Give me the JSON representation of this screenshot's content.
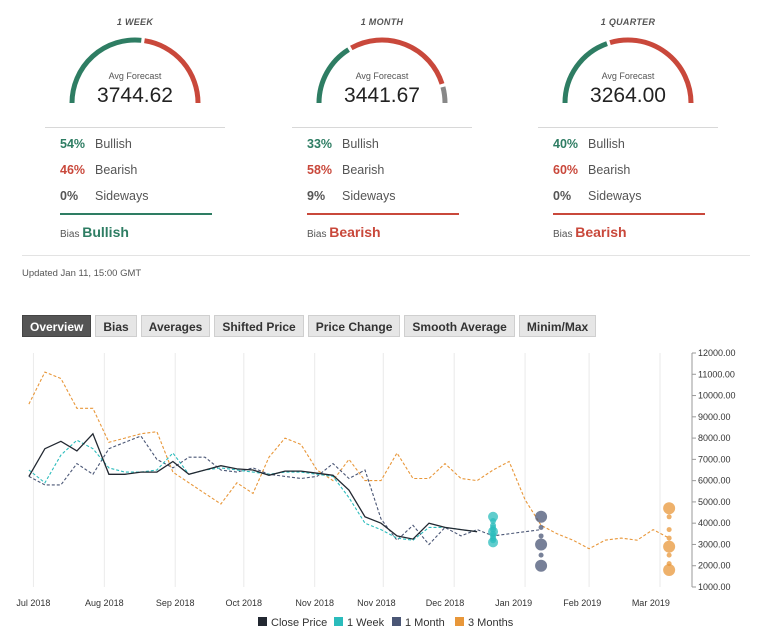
{
  "panels": [
    {
      "period": "1 WEEK",
      "avg_label": "Avg Forecast",
      "avg_value": "3744.62",
      "rows": [
        {
          "pct": "54%",
          "label": "Bullish",
          "color": "green"
        },
        {
          "pct": "46%",
          "label": "Bearish",
          "color": "red"
        },
        {
          "pct": "0%",
          "label": "Sideways",
          "color": "gray"
        }
      ],
      "bias_label": "Bias",
      "bias_value": "Bullish",
      "bias_color": "green",
      "gauge": {
        "green": 0.54,
        "red": 0.46,
        "gray": 0.0
      }
    },
    {
      "period": "1 MONTH",
      "avg_label": "Avg Forecast",
      "avg_value": "3441.67",
      "rows": [
        {
          "pct": "33%",
          "label": "Bullish",
          "color": "green"
        },
        {
          "pct": "58%",
          "label": "Bearish",
          "color": "red"
        },
        {
          "pct": "9%",
          "label": "Sideways",
          "color": "gray"
        }
      ],
      "bias_label": "Bias",
      "bias_value": "Bearish",
      "bias_color": "red",
      "gauge": {
        "green": 0.33,
        "red": 0.58,
        "gray": 0.09
      }
    },
    {
      "period": "1 QUARTER",
      "avg_label": "Avg Forecast",
      "avg_value": "3264.00",
      "rows": [
        {
          "pct": "40%",
          "label": "Bullish",
          "color": "green"
        },
        {
          "pct": "60%",
          "label": "Bearish",
          "color": "red"
        },
        {
          "pct": "0%",
          "label": "Sideways",
          "color": "gray"
        }
      ],
      "bias_label": "Bias",
      "bias_value": "Bearish",
      "bias_color": "red",
      "gauge": {
        "green": 0.4,
        "red": 0.6,
        "gray": 0.0
      }
    }
  ],
  "colors": {
    "green": "#2e7d63",
    "red": "#c9483b",
    "gray": "#888888",
    "close": "#222831",
    "week": "#2bbcbc",
    "month": "#4a5675",
    "quarter": "#e8973a"
  },
  "updated": "Updated Jan 11, 15:00 GMT",
  "tabs": [
    "Overview",
    "Bias",
    "Averages",
    "Shifted Price",
    "Price Change",
    "Smooth Average",
    "Minim/Max"
  ],
  "active_tab": "Overview",
  "chart_data": {
    "type": "line",
    "x_ticks": [
      "Jul 2018",
      "Aug 2018",
      "Sep 2018",
      "Oct 2018",
      "Nov 2018",
      "Nov 2018",
      "Dec 2018",
      "Jan 2019",
      "Feb 2019",
      "Mar 2019"
    ],
    "y_ticks": [
      "1000.00",
      "2000.00",
      "3000.00",
      "4000.00",
      "5000.00",
      "6000.00",
      "7000.00",
      "8000.00",
      "9000.00",
      "10000.00",
      "11000.00",
      "12000.00"
    ],
    "ylim": [
      1000,
      12000
    ],
    "legend": [
      "Close Price",
      "1 Week",
      "1 Month",
      "3 Months"
    ],
    "legend_position": "bottom",
    "series": [
      {
        "name": "Close Price",
        "style": "solid",
        "points": [
          [
            "2018-06-29",
            6200
          ],
          [
            "2018-07-06",
            7500
          ],
          [
            "2018-07-13",
            7850
          ],
          [
            "2018-07-20",
            7400
          ],
          [
            "2018-07-27",
            8200
          ],
          [
            "2018-08-03",
            6300
          ],
          [
            "2018-08-10",
            6300
          ],
          [
            "2018-08-17",
            6400
          ],
          [
            "2018-08-24",
            6400
          ],
          [
            "2018-08-31",
            6900
          ],
          [
            "2018-09-07",
            6300
          ],
          [
            "2018-09-14",
            6500
          ],
          [
            "2018-09-21",
            6700
          ],
          [
            "2018-09-28",
            6550
          ],
          [
            "2018-10-05",
            6500
          ],
          [
            "2018-10-12",
            6250
          ],
          [
            "2018-10-19",
            6450
          ],
          [
            "2018-10-26",
            6450
          ],
          [
            "2018-11-02",
            6350
          ],
          [
            "2018-11-09",
            6250
          ],
          [
            "2018-11-16",
            5550
          ],
          [
            "2018-11-23",
            4300
          ],
          [
            "2018-11-30",
            4000
          ],
          [
            "2018-12-07",
            3400
          ],
          [
            "2018-12-14",
            3250
          ],
          [
            "2018-12-21",
            4000
          ],
          [
            "2018-12-28",
            3800
          ],
          [
            "2019-01-04",
            3700
          ],
          [
            "2019-01-11",
            3600
          ]
        ]
      },
      {
        "name": "1 Week",
        "style": "dashed",
        "points": [
          [
            "2018-06-29",
            6500
          ],
          [
            "2018-07-06",
            5900
          ],
          [
            "2018-07-13",
            7200
          ],
          [
            "2018-07-20",
            7900
          ],
          [
            "2018-07-27",
            7500
          ],
          [
            "2018-08-03",
            6600
          ],
          [
            "2018-08-10",
            6400
          ],
          [
            "2018-08-17",
            6400
          ],
          [
            "2018-08-24",
            6500
          ],
          [
            "2018-08-31",
            7300
          ],
          [
            "2018-09-07",
            6300
          ],
          [
            "2018-09-14",
            6500
          ],
          [
            "2018-09-21",
            6600
          ],
          [
            "2018-09-28",
            6500
          ],
          [
            "2018-10-05",
            6400
          ],
          [
            "2018-10-12",
            6300
          ],
          [
            "2018-10-19",
            6400
          ],
          [
            "2018-10-26",
            6400
          ],
          [
            "2018-11-02",
            6300
          ],
          [
            "2018-11-09",
            6200
          ],
          [
            "2018-11-16",
            5200
          ],
          [
            "2018-11-23",
            4000
          ],
          [
            "2018-11-30",
            3700
          ],
          [
            "2018-12-07",
            3300
          ],
          [
            "2018-12-14",
            3200
          ],
          [
            "2018-12-21",
            3800
          ],
          [
            "2018-12-28",
            3800
          ],
          [
            "2019-01-04",
            3700
          ],
          [
            "2019-01-11",
            3600
          ]
        ]
      },
      {
        "name": "1 Month",
        "style": "dashed",
        "points": [
          [
            "2018-06-29",
            6200
          ],
          [
            "2018-07-06",
            5800
          ],
          [
            "2018-07-13",
            5800
          ],
          [
            "2018-07-20",
            6800
          ],
          [
            "2018-07-27",
            6300
          ],
          [
            "2018-08-03",
            7500
          ],
          [
            "2018-08-10",
            7800
          ],
          [
            "2018-08-17",
            8100
          ],
          [
            "2018-08-24",
            7000
          ],
          [
            "2018-08-31",
            6600
          ],
          [
            "2018-09-07",
            7100
          ],
          [
            "2018-09-14",
            7100
          ],
          [
            "2018-09-21",
            6500
          ],
          [
            "2018-09-28",
            6400
          ],
          [
            "2018-10-05",
            6600
          ],
          [
            "2018-10-12",
            6300
          ],
          [
            "2018-10-19",
            6200
          ],
          [
            "2018-10-26",
            6100
          ],
          [
            "2018-11-02",
            6200
          ],
          [
            "2018-11-09",
            6800
          ],
          [
            "2018-11-16",
            6100
          ],
          [
            "2018-11-23",
            6500
          ],
          [
            "2018-11-30",
            4200
          ],
          [
            "2018-12-07",
            3200
          ],
          [
            "2018-12-14",
            3900
          ],
          [
            "2018-12-21",
            3000
          ],
          [
            "2018-12-28",
            3800
          ],
          [
            "2019-01-04",
            3400
          ],
          [
            "2019-01-11",
            3700
          ],
          [
            "2019-01-18",
            3400
          ],
          [
            "2019-01-25",
            3500
          ],
          [
            "2019-02-01",
            3600
          ],
          [
            "2019-02-08",
            3700
          ]
        ]
      },
      {
        "name": "3 Months",
        "style": "dashed",
        "points": [
          [
            "2018-06-29",
            9600
          ],
          [
            "2018-07-06",
            11100
          ],
          [
            "2018-07-13",
            10800
          ],
          [
            "2018-07-20",
            9400
          ],
          [
            "2018-07-27",
            9400
          ],
          [
            "2018-08-03",
            7800
          ],
          [
            "2018-08-10",
            8000
          ],
          [
            "2018-08-17",
            8200
          ],
          [
            "2018-08-24",
            8300
          ],
          [
            "2018-08-31",
            6400
          ],
          [
            "2018-09-07",
            5900
          ],
          [
            "2018-09-14",
            5400
          ],
          [
            "2018-09-21",
            4900
          ],
          [
            "2018-09-28",
            5900
          ],
          [
            "2018-10-05",
            5400
          ],
          [
            "2018-10-12",
            7100
          ],
          [
            "2018-10-19",
            8000
          ],
          [
            "2018-10-26",
            7700
          ],
          [
            "2018-11-02",
            6500
          ],
          [
            "2018-11-09",
            6000
          ],
          [
            "2018-11-16",
            7000
          ],
          [
            "2018-11-23",
            6000
          ],
          [
            "2018-11-30",
            6000
          ],
          [
            "2018-12-07",
            7300
          ],
          [
            "2018-12-14",
            6100
          ],
          [
            "2018-12-21",
            6100
          ],
          [
            "2018-12-28",
            6800
          ],
          [
            "2019-01-04",
            6100
          ],
          [
            "2019-01-11",
            6000
          ],
          [
            "2019-01-18",
            6500
          ],
          [
            "2019-01-25",
            6900
          ],
          [
            "2019-02-01",
            5100
          ],
          [
            "2019-02-08",
            3900
          ],
          [
            "2019-02-15",
            3500
          ],
          [
            "2019-02-22",
            3200
          ],
          [
            "2019-03-01",
            2800
          ],
          [
            "2019-03-08",
            3200
          ],
          [
            "2019-03-15",
            3300
          ],
          [
            "2019-03-22",
            3200
          ],
          [
            "2019-03-29",
            3700
          ],
          [
            "2019-04-05",
            3300
          ]
        ]
      }
    ],
    "scatter": [
      {
        "name": "1 Week",
        "date": "2019-01-18",
        "values": [
          4300,
          4100,
          3900,
          3800,
          3700,
          3600,
          3500,
          3400,
          3300,
          3200,
          3100
        ]
      },
      {
        "name": "1 Month",
        "date": "2019-02-08",
        "values": [
          4300,
          3800,
          3400,
          3000,
          2500,
          2000
        ]
      },
      {
        "name": "3 Months",
        "date": "2019-04-05",
        "values": [
          4700,
          4300,
          3700,
          3300,
          2900,
          2500,
          2100,
          1800
        ]
      }
    ]
  }
}
